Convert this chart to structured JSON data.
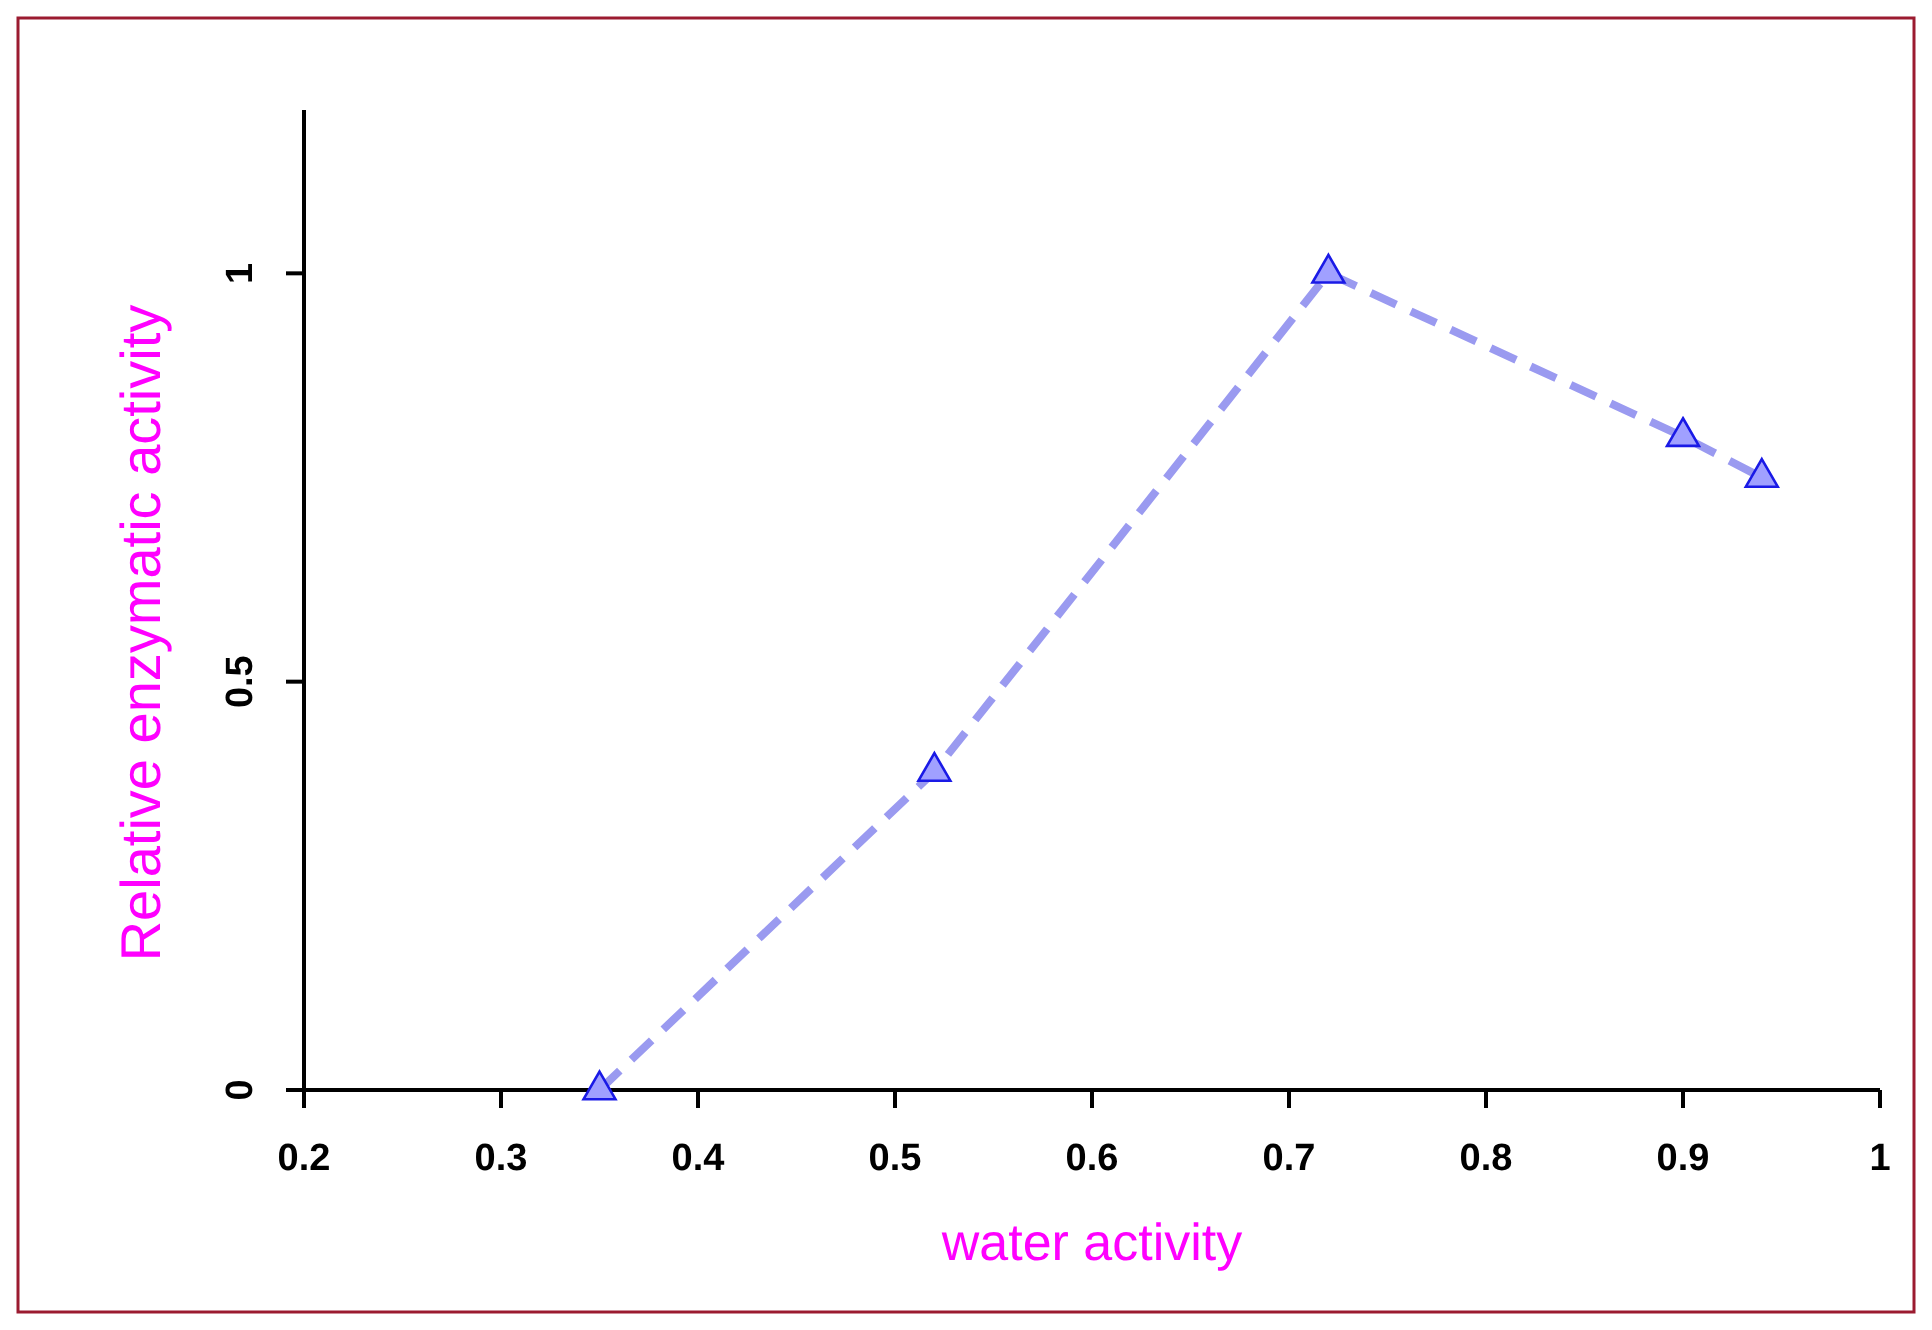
{
  "chart_data": {
    "type": "line",
    "xlabel": "water activity",
    "ylabel": "Relative enzymatic activity",
    "x": [
      0.35,
      0.52,
      0.72,
      0.9,
      0.94
    ],
    "series": [
      {
        "color": "#9a9af0",
        "values": [
          0,
          0.39,
          1,
          0.8,
          0.75
        ]
      }
    ],
    "xlim": [
      0.2,
      1
    ],
    "xticks": [
      0.2,
      0.3,
      0.4,
      0.5,
      0.6,
      0.7,
      0.8,
      0.9,
      1
    ],
    "ylim": [
      0,
      1.2
    ],
    "yticks": [
      0,
      0.5,
      1
    ],
    "marker": "triangle",
    "line_style": "dashed",
    "grid": false
  }
}
